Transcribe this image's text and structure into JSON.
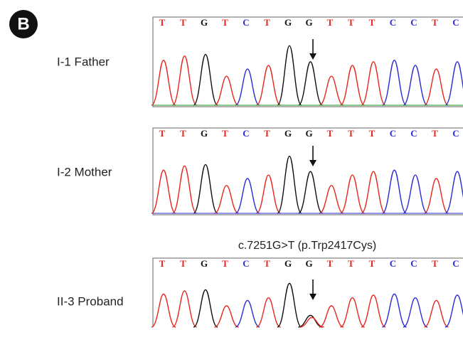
{
  "panel_label": "B",
  "panels": [
    {
      "label": "I-1 Father",
      "bases": [
        "T",
        "T",
        "G",
        "T",
        "C",
        "T",
        "G",
        "G",
        "T",
        "T",
        "T",
        "C",
        "C",
        "T",
        "C"
      ]
    },
    {
      "label": "I-2 Mother",
      "bases": [
        "T",
        "T",
        "G",
        "T",
        "C",
        "T",
        "G",
        "G",
        "T",
        "T",
        "T",
        "C",
        "C",
        "T",
        "C"
      ]
    },
    {
      "label": "II-3 Proband",
      "annotation": "c.7251G>T (p.Trp2417Cys)",
      "bases": [
        "T",
        "T",
        "G",
        "T",
        "C",
        "T",
        "G",
        "G",
        "T",
        "T",
        "T",
        "C",
        "C",
        "T",
        "C"
      ]
    }
  ]
}
